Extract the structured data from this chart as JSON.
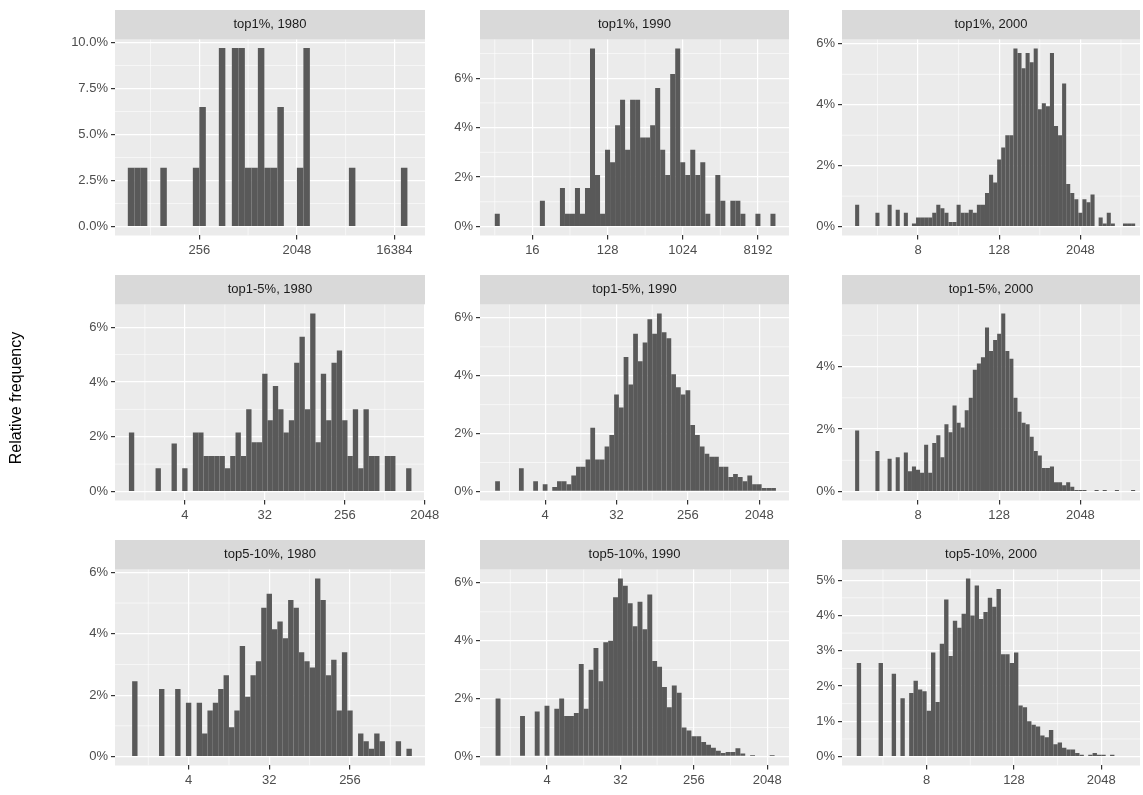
{
  "chart_data": [
    {
      "type": "histogram",
      "title": "top1%, 1980",
      "color": "#595959",
      "log": "x",
      "grid": true,
      "xlim": [
        42.4,
        31450
      ],
      "xticks": [
        256,
        2048,
        16384
      ],
      "ylim": [
        -0.48,
        10.16
      ],
      "yticks": [
        {
          "value": 0,
          "label": "0.0%"
        },
        {
          "value": 2.5,
          "label": "2.5%"
        },
        {
          "value": 5,
          "label": "5.0%"
        },
        {
          "value": 7.5,
          "label": "7.5%"
        },
        {
          "value": 10,
          "label": "10.0%"
        }
      ],
      "bins": [
        55.72,
        64,
        73.52,
        84.45,
        97.01,
        111.4,
        128,
        147.0,
        168.9,
        194.0,
        222.9,
        256,
        294.1,
        337.8,
        388.0,
        445.7,
        512,
        588.1,
        675.6,
        776.0,
        891.4,
        1024,
        1176,
        1351,
        1552,
        1783,
        2048,
        2353,
        2702,
        3104,
        3566,
        4096,
        4705,
        5405,
        6208,
        7132,
        8192,
        9410,
        10809,
        12417,
        14263,
        16384,
        18820,
        21619
      ],
      "values": [
        3.2,
        3.2,
        3.2,
        0,
        0,
        3.2,
        0,
        0,
        0,
        0,
        3.2,
        6.5,
        0,
        0,
        9.7,
        0,
        9.7,
        9.7,
        3.2,
        3.2,
        9.7,
        3.2,
        3.2,
        6.5,
        0,
        0,
        3.2,
        9.7,
        0,
        0,
        0,
        0,
        0,
        0,
        3.2,
        0,
        0,
        0,
        0,
        0,
        0,
        0,
        3.2
      ]
    },
    {
      "type": "histogram",
      "title": "top1%, 1990",
      "color": "#595959",
      "log": "x",
      "grid": true,
      "xlim": [
        3.76,
        19350
      ],
      "xticks": [
        16,
        128,
        1024,
        8192
      ],
      "ylim": [
        -0.36,
        7.56
      ],
      "yticks": [
        {
          "value": 0,
          "label": "0%"
        },
        {
          "value": 2,
          "label": "2%"
        },
        {
          "value": 4,
          "label": "4%"
        },
        {
          "value": 6,
          "label": "6%"
        }
      ],
      "bins": [
        5.657,
        6.498,
        7.464,
        8.574,
        9.849,
        11.31,
        13.0,
        14.93,
        17.15,
        19.7,
        22.63,
        25.99,
        29.86,
        34.3,
        39.4,
        45.25,
        51.98,
        59.71,
        68.59,
        78.79,
        90.51,
        104.0,
        119.4,
        137.2,
        157.6,
        181.0,
        207.9,
        238.9,
        274.4,
        315.2,
        362.0,
        415.9,
        477.7,
        548.7,
        630.3,
        724.1,
        831.8,
        955.4,
        1097,
        1261,
        1448,
        1664,
        1911,
        2195,
        2521,
        2896,
        3327,
        3822,
        4390,
        5043,
        5793,
        6654,
        7643,
        8780,
        10086,
        11585,
        13308
      ],
      "values": [
        0.52,
        0,
        0,
        0,
        0,
        0,
        0,
        0,
        0,
        1.04,
        0,
        0,
        0,
        1.56,
        0.52,
        0.52,
        1.56,
        0.52,
        1.56,
        7.2,
        2.08,
        0.52,
        3.1,
        2.6,
        4.1,
        5.13,
        3.1,
        5.13,
        5.13,
        3.6,
        3.6,
        4.1,
        5.6,
        3.1,
        2.08,
        6.17,
        7.2,
        2.6,
        2.08,
        3.1,
        2.08,
        2.6,
        0.52,
        0,
        2.08,
        1.04,
        0,
        1.04,
        1.04,
        0.52,
        0,
        0,
        0.52,
        0,
        0,
        0.52
      ]
    },
    {
      "type": "histogram",
      "title": "top1%, 2000",
      "color": "#595959",
      "log": "x",
      "grid": true,
      "xlim": [
        0.596,
        15700
      ],
      "xticks": [
        8,
        128,
        2048
      ],
      "ylim": [
        -0.29,
        6.14
      ],
      "yticks": [
        {
          "value": 0,
          "label": "0%"
        },
        {
          "value": 2,
          "label": "2%"
        },
        {
          "value": 4,
          "label": "4%"
        },
        {
          "value": 6,
          "label": "6%"
        }
      ],
      "bins": [
        0.933,
        1.072,
        1.231,
        1.414,
        1.625,
        1.866,
        2.144,
        2.462,
        2.828,
        3.249,
        3.732,
        4.287,
        4.925,
        5.657,
        6.498,
        7.464,
        8.574,
        9.849,
        11.31,
        13.0,
        14.93,
        17.15,
        19.7,
        22.63,
        25.99,
        29.86,
        34.3,
        39.4,
        45.25,
        51.98,
        59.71,
        68.59,
        78.79,
        90.51,
        104.0,
        119.4,
        137.2,
        157.6,
        181.0,
        207.9,
        238.9,
        274.4,
        315.2,
        362.0,
        415.9,
        477.7,
        548.7,
        630.3,
        724.1,
        831.8,
        955.4,
        1097,
        1261,
        1448,
        1664,
        1911,
        2195,
        2521,
        2896,
        3327,
        3822,
        4390,
        5043,
        5793,
        6654,
        7643,
        8780,
        10086,
        11585,
        13308
      ],
      "values": [
        0.72,
        0,
        0,
        0,
        0,
        0.45,
        0,
        0,
        0.72,
        0,
        0.55,
        0,
        0.45,
        0,
        0.1,
        0.3,
        0.3,
        0.3,
        0.3,
        0.45,
        0.72,
        0.6,
        0.45,
        0.15,
        0.15,
        0.72,
        0.45,
        0.45,
        0.55,
        0.45,
        0.72,
        0.72,
        1.1,
        1.7,
        1.45,
        2.2,
        2.6,
        3.0,
        3.0,
        5.85,
        5.7,
        5.2,
        5.7,
        5.4,
        5.85,
        3.85,
        4.05,
        3.95,
        5.7,
        3.3,
        3.0,
        4.7,
        1.4,
        1.1,
        0.9,
        0.45,
        0.9,
        0.8,
        1.05,
        0,
        0.3,
        0.1,
        0.45,
        0.1,
        0,
        0,
        0.1,
        0.1,
        0.1
      ]
    },
    {
      "type": "histogram",
      "title": "top1-5%, 1980",
      "ylabel": "Relative frequency",
      "color": "#595959",
      "log": "x",
      "grid": true,
      "xlim": [
        0.65,
        2060
      ],
      "xticks": [
        4,
        32,
        256,
        2048
      ],
      "ylim": [
        -0.325,
        6.825
      ],
      "yticks": [
        {
          "value": 0,
          "label": "0%"
        },
        {
          "value": 2,
          "label": "2%"
        },
        {
          "value": 4,
          "label": "4%"
        },
        {
          "value": 6,
          "label": "6%"
        }
      ],
      "bins": [
        0.933,
        1.072,
        1.231,
        1.414,
        1.625,
        1.866,
        2.144,
        2.462,
        2.828,
        3.249,
        3.732,
        4.287,
        4.925,
        5.657,
        6.498,
        7.464,
        8.574,
        9.849,
        11.31,
        13.0,
        14.93,
        17.15,
        19.7,
        22.63,
        25.99,
        29.86,
        34.3,
        39.4,
        45.25,
        51.98,
        59.71,
        68.59,
        78.79,
        90.51,
        104.0,
        119.4,
        137.2,
        157.6,
        181.0,
        207.9,
        238.9,
        274.4,
        315.2,
        362.0,
        415.9,
        477.7,
        548.7,
        630.3,
        724.1,
        831.8,
        955.4,
        1097,
        1261,
        1448
      ],
      "values": [
        2.15,
        0,
        0,
        0,
        0,
        0.85,
        0,
        0,
        1.75,
        0,
        0.85,
        0,
        2.15,
        2.15,
        1.3,
        1.3,
        1.3,
        1.3,
        0.85,
        1.3,
        2.15,
        1.3,
        3.0,
        1.8,
        1.8,
        4.3,
        2.6,
        3.85,
        3.0,
        2.15,
        2.6,
        4.7,
        5.65,
        3.0,
        6.5,
        1.8,
        4.3,
        2.6,
        4.7,
        5.15,
        2.6,
        1.3,
        3.0,
        0.85,
        3.0,
        1.3,
        1.3,
        0,
        1.3,
        1.3,
        0,
        0,
        0.85
      ]
    },
    {
      "type": "histogram",
      "title": "top1-5%, 1990",
      "color": "#595959",
      "log": "x",
      "grid": true,
      "xlim": [
        0.609,
        4870
      ],
      "xticks": [
        4,
        32,
        256,
        2048
      ],
      "ylim": [
        -0.31,
        6.46
      ],
      "yticks": [
        {
          "value": 0,
          "label": "0%"
        },
        {
          "value": 2,
          "label": "2%"
        },
        {
          "value": 4,
          "label": "4%"
        },
        {
          "value": 6,
          "label": "6%"
        }
      ],
      "bins": [
        0.933,
        1.072,
        1.231,
        1.414,
        1.625,
        1.866,
        2.144,
        2.462,
        2.828,
        3.249,
        3.732,
        4.287,
        4.925,
        5.657,
        6.498,
        7.464,
        8.574,
        9.849,
        11.31,
        13.0,
        14.93,
        17.15,
        19.7,
        22.63,
        25.99,
        29.86,
        34.3,
        39.4,
        45.25,
        51.98,
        59.71,
        68.59,
        78.79,
        90.51,
        104.0,
        119.4,
        137.2,
        157.6,
        181.0,
        207.9,
        238.9,
        274.4,
        315.2,
        362.0,
        415.9,
        477.7,
        548.7,
        630.3,
        724.1,
        831.8,
        955.4,
        1097,
        1261,
        1448,
        1664,
        1911,
        2195,
        2521,
        2896,
        3327
      ],
      "values": [
        0.35,
        0,
        0,
        0,
        0,
        0.8,
        0,
        0,
        0.35,
        0,
        0.25,
        0,
        0.15,
        0.35,
        0.35,
        0.25,
        0.55,
        0.85,
        0.85,
        1.1,
        2.2,
        1.1,
        1.1,
        1.55,
        1.95,
        3.35,
        2.9,
        4.65,
        3.7,
        5.45,
        4.5,
        5.15,
        5.95,
        5.45,
        6.15,
        5.5,
        5.3,
        4.05,
        3.6,
        3.35,
        3.5,
        2.3,
        1.95,
        1.55,
        1.3,
        1.2,
        1.2,
        0.85,
        0.85,
        0.5,
        0.6,
        0.5,
        0.35,
        0.55,
        0.25,
        0.25,
        0.12,
        0.12,
        0.12
      ]
    },
    {
      "type": "histogram",
      "title": "top1-5%, 2000",
      "color": "#595959",
      "log": "x",
      "grid": true,
      "xlim": [
        0.596,
        15700
      ],
      "xticks": [
        8,
        128,
        2048
      ],
      "ylim": [
        -0.285,
        5.985
      ],
      "yticks": [
        {
          "value": 0,
          "label": "0%"
        },
        {
          "value": 2,
          "label": "2%"
        },
        {
          "value": 4,
          "label": "4%"
        }
      ],
      "bins": [
        0.933,
        1.072,
        1.231,
        1.414,
        1.625,
        1.866,
        2.144,
        2.462,
        2.828,
        3.249,
        3.732,
        4.287,
        4.925,
        5.657,
        6.498,
        7.464,
        8.574,
        9.849,
        11.31,
        13.0,
        14.93,
        17.15,
        19.7,
        22.63,
        25.99,
        29.86,
        34.3,
        39.4,
        45.25,
        51.98,
        59.71,
        68.59,
        78.79,
        90.51,
        104.0,
        119.4,
        137.2,
        157.6,
        181.0,
        207.9,
        238.9,
        274.4,
        315.2,
        362.0,
        415.9,
        477.7,
        548.7,
        630.3,
        724.1,
        831.8,
        955.4,
        1097,
        1261,
        1448,
        1664,
        1911,
        2195,
        2521,
        2896,
        3327,
        3822,
        4390,
        5043,
        5793,
        6654,
        7643,
        8780,
        10086,
        11585,
        13308
      ],
      "values": [
        1.95,
        0,
        0,
        0,
        0,
        1.3,
        0,
        0,
        1.05,
        0,
        1.1,
        0,
        1.25,
        0.65,
        0.8,
        0.7,
        0.6,
        1.5,
        0.6,
        1.55,
        1.8,
        1.1,
        2.15,
        1.9,
        2.75,
        2.2,
        2.05,
        2.6,
        3.0,
        3.9,
        4.1,
        4.3,
        5.25,
        4.5,
        4.85,
        5.05,
        5.7,
        4.5,
        4.25,
        3.0,
        2.55,
        2.2,
        2.15,
        1.75,
        1.3,
        1.15,
        0.75,
        0.75,
        0.8,
        0.3,
        0.3,
        0.2,
        0.3,
        0.15,
        0.05,
        0.05,
        0.05,
        0,
        0,
        0.05,
        0,
        0.05,
        0,
        0,
        0.05,
        0,
        0,
        0,
        0.05
      ]
    },
    {
      "type": "histogram",
      "title": "top5-10%, 1980",
      "color": "#595959",
      "log": "x",
      "grid": true,
      "xlim": [
        0.633,
        1770
      ],
      "xticks": [
        4,
        32,
        256
      ],
      "ylim": [
        -0.29,
        6.09
      ],
      "yticks": [
        {
          "value": 0,
          "label": "0%"
        },
        {
          "value": 2,
          "label": "2%"
        },
        {
          "value": 4,
          "label": "4%"
        },
        {
          "value": 6,
          "label": "6%"
        }
      ],
      "bins": [
        0.933,
        1.072,
        1.231,
        1.414,
        1.625,
        1.866,
        2.144,
        2.462,
        2.828,
        3.249,
        3.732,
        4.287,
        4.925,
        5.657,
        6.498,
        7.464,
        8.574,
        9.849,
        11.31,
        13.0,
        14.93,
        17.15,
        19.7,
        22.63,
        25.99,
        29.86,
        34.3,
        39.4,
        45.25,
        51.98,
        59.71,
        68.59,
        78.79,
        90.51,
        104.0,
        119.4,
        137.2,
        157.6,
        181.0,
        207.9,
        238.9,
        274.4,
        315.2,
        362.0,
        415.9,
        477.7,
        548.7,
        630.3,
        724.1,
        831.8,
        955.4,
        1097,
        1261
      ],
      "values": [
        2.45,
        0,
        0,
        0,
        0,
        2.2,
        0,
        0,
        2.2,
        0,
        1.75,
        0,
        1.75,
        0.75,
        1.5,
        1.75,
        2.2,
        2.65,
        0.95,
        1.5,
        3.6,
        1.95,
        2.65,
        3.1,
        4.85,
        5.3,
        4.15,
        4.4,
        3.85,
        5.1,
        4.85,
        3.4,
        3.1,
        2.9,
        5.8,
        5.1,
        2.65,
        3.15,
        1.5,
        3.4,
        1.5,
        0,
        0.75,
        0.5,
        0.25,
        0.75,
        0.5,
        0,
        0,
        0.5,
        0,
        0.25
      ]
    },
    {
      "type": "histogram",
      "title": "top5-10%, 1990",
      "color": "#595959",
      "log": "x",
      "grid": true,
      "xlim": [
        0.611,
        3790
      ],
      "xticks": [
        4,
        32,
        256,
        2048
      ],
      "ylim": [
        -0.31,
        6.46
      ],
      "yticks": [
        {
          "value": 0,
          "label": "0%"
        },
        {
          "value": 2,
          "label": "2%"
        },
        {
          "value": 4,
          "label": "4%"
        },
        {
          "value": 6,
          "label": "6%"
        }
      ],
      "bins": [
        0.933,
        1.072,
        1.231,
        1.414,
        1.625,
        1.866,
        2.144,
        2.462,
        2.828,
        3.249,
        3.732,
        4.287,
        4.925,
        5.657,
        6.498,
        7.464,
        8.574,
        9.849,
        11.31,
        13.0,
        14.93,
        17.15,
        19.7,
        22.63,
        25.99,
        29.86,
        34.3,
        39.4,
        45.25,
        51.98,
        59.71,
        68.59,
        78.79,
        90.51,
        104.0,
        119.4,
        137.2,
        157.6,
        181.0,
        207.9,
        238.9,
        274.4,
        315.2,
        362.0,
        415.9,
        477.7,
        548.7,
        630.3,
        724.1,
        831.8,
        955.4,
        1097,
        1261,
        1448,
        1664,
        1911,
        2195,
        2521
      ],
      "values": [
        2.0,
        0,
        0,
        0,
        0,
        1.4,
        0,
        0,
        1.55,
        0,
        1.75,
        0,
        1.65,
        2.0,
        1.4,
        1.4,
        1.5,
        3.2,
        1.65,
        3.0,
        3.75,
        2.6,
        3.95,
        4.0,
        5.5,
        6.15,
        5.9,
        5.3,
        4.5,
        5.35,
        4.4,
        5.6,
        3.3,
        3.1,
        2.4,
        1.7,
        2.45,
        2.2,
        1.0,
        0.9,
        0.7,
        0.7,
        0.5,
        0.4,
        0.3,
        0.2,
        0.12,
        0.15,
        0.15,
        0.28,
        0.1,
        0,
        0.05,
        0,
        0,
        0,
        0.05
      ]
    },
    {
      "type": "histogram",
      "title": "top5-10%, 2000",
      "color": "#595959",
      "log": "x",
      "grid": true,
      "xlim": [
        0.545,
        6990
      ],
      "xticks": [
        8,
        128,
        2048
      ],
      "ylim": [
        -0.25,
        5.3
      ],
      "yticks": [
        {
          "value": 0,
          "label": "0%"
        },
        {
          "value": 1,
          "label": "1%"
        },
        {
          "value": 2,
          "label": "2%"
        },
        {
          "value": 3,
          "label": "3%"
        },
        {
          "value": 4,
          "label": "4%"
        },
        {
          "value": 5,
          "label": "5%"
        }
      ],
      "bins": [
        0.8706,
        1,
        1.149,
        1.32,
        1.516,
        1.741,
        2,
        2.297,
        2.639,
        3.031,
        3.482,
        4,
        4.595,
        5.278,
        6.063,
        6.964,
        8,
        9.19,
        10.56,
        12.13,
        13.93,
        16,
        18.38,
        21.11,
        24.25,
        27.86,
        32,
        36.76,
        42.22,
        48.5,
        55.72,
        64,
        73.52,
        84.45,
        97.01,
        111.4,
        128,
        147.0,
        168.9,
        194.0,
        222.9,
        256,
        294.1,
        337.8,
        388.0,
        445.7,
        512,
        588.1,
        675.6,
        776.0,
        891.4,
        1024,
        1176,
        1351,
        1552,
        1783,
        2048,
        2353,
        2702,
        3104
      ],
      "values": [
        2.65,
        0,
        0,
        0,
        0,
        2.65,
        0,
        0,
        2.35,
        0,
        1.65,
        0,
        1.8,
        2.15,
        1.9,
        1.85,
        1.3,
        2.95,
        1.55,
        3.2,
        4.45,
        2.85,
        3.85,
        3.65,
        4.05,
        5.05,
        4.0,
        4.85,
        3.9,
        4.1,
        4.5,
        4.25,
        4.75,
        2.9,
        2.9,
        2.65,
        2.95,
        1.45,
        1.4,
        1.0,
        0.9,
        0.85,
        0.6,
        0.55,
        0.75,
        0.35,
        0.4,
        0.25,
        0.2,
        0.2,
        0.1,
        0.05,
        0,
        0.05,
        0.1,
        0.05,
        0.05,
        0,
        0.05
      ]
    }
  ]
}
